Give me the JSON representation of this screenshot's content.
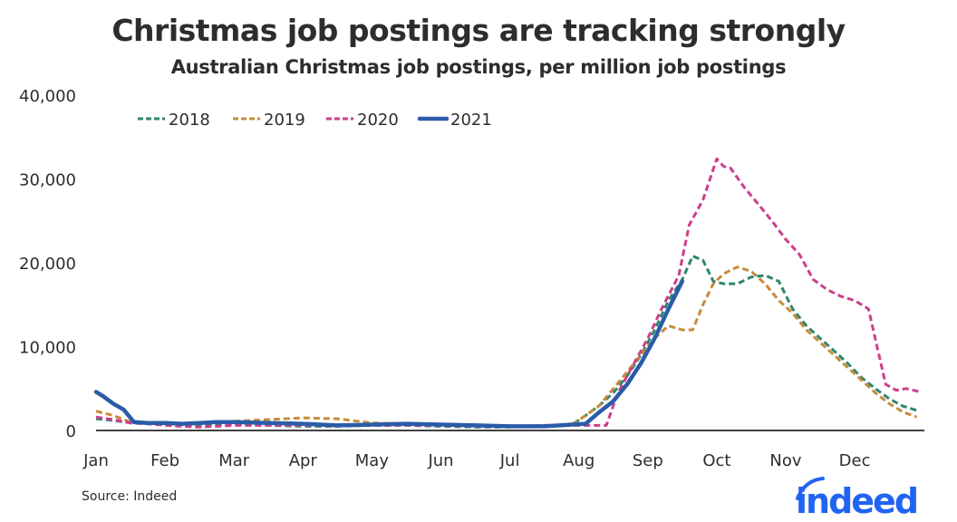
{
  "header": {
    "title": "Christmas job postings are tracking strongly",
    "subtitle": "Australian Christmas job postings, per million job postings"
  },
  "footer": {
    "source": "Source: Indeed",
    "logo_text": "indeed"
  },
  "chart_data": {
    "type": "line",
    "title": "Christmas job postings are tracking strongly",
    "subtitle": "Australian Christmas job postings, per million job postings",
    "xlabel": "",
    "ylabel": "",
    "ylim": [
      0,
      40000
    ],
    "yticks": [
      0,
      10000,
      20000,
      30000,
      40000
    ],
    "ytick_labels": [
      "0",
      "10,000",
      "20,000",
      "30,000",
      "40,000"
    ],
    "xlim": [
      0,
      12
    ],
    "xticks": [
      0,
      1,
      2,
      3,
      4,
      5,
      6,
      7,
      8,
      9,
      10,
      11
    ],
    "xtick_labels": [
      "Jan",
      "Feb",
      "Mar",
      "Apr",
      "May",
      "Jun",
      "Jul",
      "Aug",
      "Sep",
      "Oct",
      "Nov",
      "Dec"
    ],
    "x_unit": "months since start of January",
    "grid": false,
    "legend_position": "top-left",
    "series": [
      {
        "name": "2018",
        "color": "#2e8570",
        "style": "dashed",
        "x": [
          0,
          0.25,
          0.5,
          0.75,
          1,
          1.25,
          1.5,
          1.75,
          2,
          2.5,
          3,
          3.5,
          4,
          4.5,
          5,
          5.5,
          6,
          6.5,
          6.9,
          7.1,
          7.3,
          7.5,
          7.7,
          7.9,
          8.1,
          8.3,
          8.5,
          8.65,
          8.8,
          8.95,
          9.1,
          9.3,
          9.5,
          9.7,
          9.9,
          10.1,
          10.3,
          10.5,
          10.7,
          10.9,
          11.1,
          11.3,
          11.5,
          11.7,
          11.9
        ],
        "values": [
          1400,
          1200,
          900,
          800,
          700,
          600,
          600,
          700,
          700,
          600,
          500,
          500,
          600,
          600,
          500,
          400,
          400,
          500,
          700,
          1800,
          3000,
          4500,
          6500,
          9000,
          12000,
          15500,
          18000,
          20800,
          20300,
          17800,
          17500,
          17500,
          18300,
          18500,
          17800,
          14500,
          12500,
          11000,
          9500,
          8000,
          6300,
          5000,
          3800,
          2900,
          2400
        ]
      },
      {
        "name": "2019",
        "color": "#c48c3a",
        "style": "dashed",
        "x": [
          0,
          0.25,
          0.5,
          0.75,
          1,
          1.25,
          1.5,
          1.75,
          2,
          2.5,
          3,
          3.5,
          4,
          4.5,
          5,
          5.5,
          6,
          6.5,
          6.9,
          7.1,
          7.3,
          7.5,
          7.7,
          7.9,
          8.1,
          8.3,
          8.5,
          8.65,
          8.8,
          8.95,
          9.1,
          9.3,
          9.5,
          9.7,
          9.9,
          10.1,
          10.3,
          10.5,
          10.7,
          10.9,
          11.1,
          11.3,
          11.5,
          11.7,
          11.9
        ],
        "values": [
          2300,
          1800,
          1000,
          900,
          800,
          800,
          900,
          1000,
          1100,
          1300,
          1500,
          1400,
          900,
          800,
          700,
          700,
          500,
          500,
          700,
          1800,
          3000,
          5000,
          7000,
          9000,
          11000,
          12500,
          12000,
          12000,
          15000,
          17500,
          18700,
          19500,
          19000,
          17500,
          15500,
          14000,
          12000,
          10500,
          9000,
          7500,
          6000,
          4500,
          3200,
          2200,
          1600
        ]
      },
      {
        "name": "2020",
        "color": "#cc3e8a",
        "style": "dashed",
        "x": [
          0,
          0.25,
          0.5,
          0.75,
          1,
          1.25,
          1.5,
          1.75,
          2,
          2.5,
          3,
          3.5,
          4,
          4.5,
          5,
          5.5,
          6,
          6.5,
          7,
          7.2,
          7.4,
          7.5,
          7.6,
          7.8,
          8.0,
          8.2,
          8.45,
          8.6,
          8.8,
          9.0,
          9.1,
          9.2,
          9.4,
          9.6,
          9.8,
          10.0,
          10.2,
          10.4,
          10.6,
          10.8,
          11.0,
          11.2,
          11.45,
          11.6,
          11.75,
          11.95
        ],
        "values": [
          1600,
          1300,
          900,
          800,
          600,
          500,
          400,
          500,
          600,
          600,
          600,
          600,
          600,
          600,
          600,
          500,
          500,
          600,
          600,
          600,
          600,
          3000,
          5000,
          8000,
          11000,
          14500,
          18500,
          24500,
          27500,
          32400,
          31500,
          31300,
          29000,
          27000,
          25000,
          22800,
          21000,
          18000,
          16800,
          16000,
          15500,
          14500,
          5500,
          4800,
          5000,
          4600
        ]
      },
      {
        "name": "2021",
        "color": "#2a5ca8",
        "style": "solid",
        "x": [
          0,
          0.1,
          0.25,
          0.4,
          0.55,
          0.75,
          1,
          1.25,
          1.5,
          1.75,
          2,
          2.5,
          3,
          3.5,
          4,
          4.5,
          5,
          5.5,
          6,
          6.5,
          6.9,
          7.1,
          7.3,
          7.5,
          7.7,
          7.9,
          8.1,
          8.3,
          8.5
        ],
        "values": [
          4600,
          4100,
          3200,
          2500,
          1000,
          900,
          900,
          800,
          900,
          1000,
          1000,
          900,
          800,
          600,
          700,
          800,
          700,
          600,
          500,
          500,
          700,
          800,
          2200,
          3500,
          5500,
          8000,
          11000,
          14500,
          17800
        ]
      }
    ]
  }
}
